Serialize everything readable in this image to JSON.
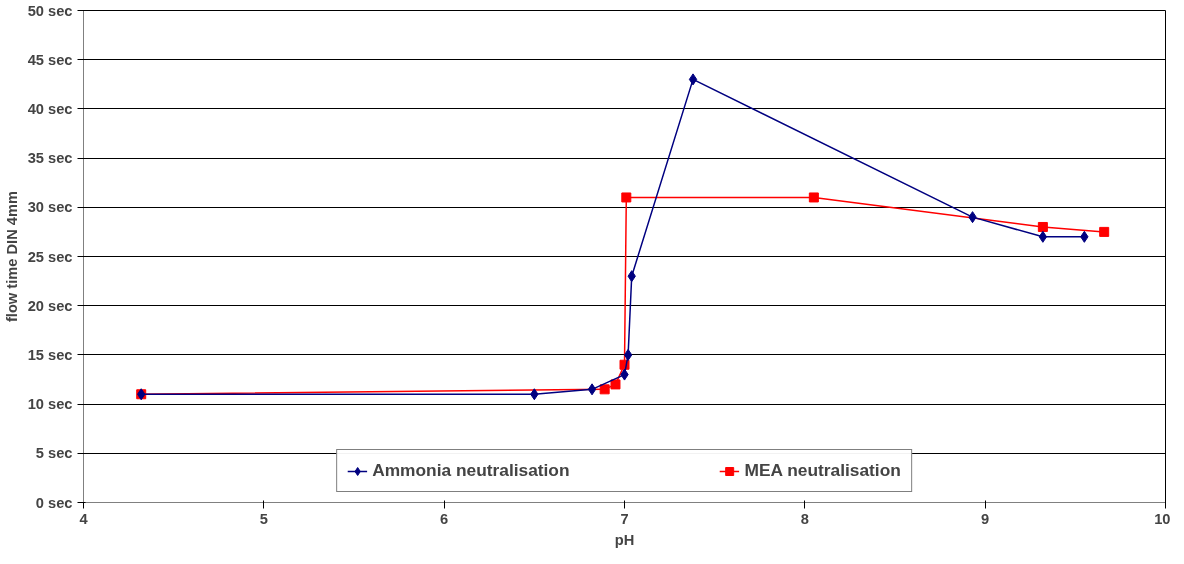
{
  "chart_data": {
    "type": "line",
    "xlabel": "pH",
    "ylabel": "flow time DIN 4mm",
    "xlim": [
      4,
      10
    ],
    "ylim": [
      0,
      50
    ],
    "xticks": [
      4,
      5,
      6,
      7,
      8,
      9,
      10
    ],
    "yticks": [
      {
        "value": 0,
        "label": "0 sec"
      },
      {
        "value": 5,
        "label": "5 sec"
      },
      {
        "value": 10,
        "label": "10 sec"
      },
      {
        "value": 15,
        "label": "15 sec"
      },
      {
        "value": 20,
        "label": "20 sec"
      },
      {
        "value": 25,
        "label": "25 sec"
      },
      {
        "value": 30,
        "label": "30 sec"
      },
      {
        "value": 35,
        "label": "35 sec"
      },
      {
        "value": 40,
        "label": "40 sec"
      },
      {
        "value": 45,
        "label": "45 sec"
      },
      {
        "value": 50,
        "label": "50 sec"
      }
    ],
    "grid": "y",
    "legend": "bottom",
    "line_style": "solid",
    "series": [
      {
        "name": "Ammonia neutralisation",
        "color": "#000080",
        "marker": "diamond",
        "x": [
          4.32,
          6.5,
          6.82,
          7.0,
          7.02,
          7.04,
          7.38,
          8.93,
          9.32,
          9.55
        ],
        "values": [
          11,
          11,
          11.5,
          13,
          15,
          23,
          43,
          29,
          27,
          27
        ]
      },
      {
        "name": "MEA neutralisation",
        "color": "#ff0000",
        "marker": "square",
        "x": [
          4.32,
          6.89,
          6.95,
          7.0,
          7.01,
          8.05,
          9.32,
          9.66
        ],
        "values": [
          11,
          11.5,
          12,
          14,
          31,
          31,
          28,
          27.5
        ]
      }
    ]
  }
}
